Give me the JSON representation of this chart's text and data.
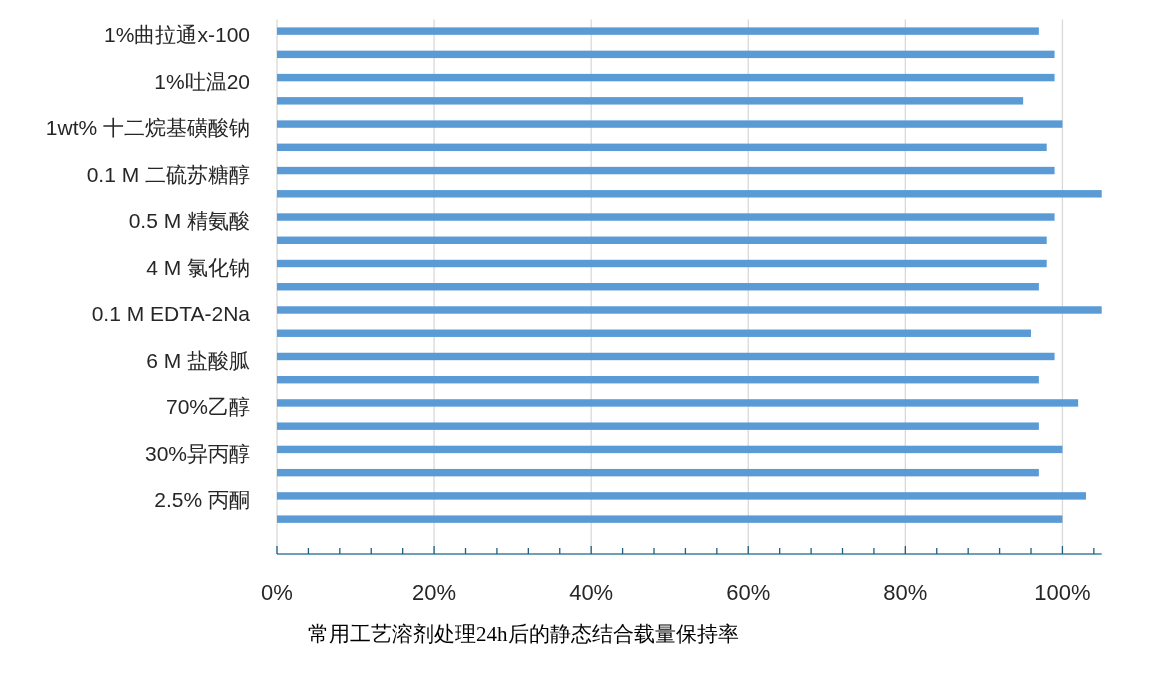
{
  "chart_data": {
    "type": "bar",
    "orientation": "horizontal",
    "title": "常用工艺溶剂处理24h后的静态结合载量保持率",
    "categories": [
      "1%曲拉通x-100",
      null,
      "1%吐温20",
      null,
      "1wt% 十二烷基磺酸钠",
      null,
      "0.1 M 二硫苏糖醇",
      null,
      "0.5 M 精氨酸",
      null,
      "4 M 氯化钠",
      null,
      "0.1 M EDTA-2Na",
      null,
      "6 M 盐酸胍",
      null,
      "70%乙醇",
      null,
      "30%异丙醇",
      null,
      "2.5% 丙酮",
      null,
      null
    ],
    "values": [
      97,
      99,
      99,
      95,
      100,
      98,
      99,
      105,
      99,
      98,
      98,
      97,
      105,
      96,
      99,
      97,
      102,
      97,
      100,
      97,
      103,
      100,
      null
    ],
    "color": "#5b9bd5",
    "xlim": [
      0,
      105
    ],
    "xticks": [
      {
        "value": 0,
        "label": "0%"
      },
      {
        "value": 4,
        "label": null
      },
      {
        "value": 8,
        "label": null
      },
      {
        "value": 12,
        "label": null
      },
      {
        "value": 16,
        "label": null
      },
      {
        "value": 20,
        "label": "20%"
      },
      {
        "value": 24,
        "label": null
      },
      {
        "value": 28,
        "label": null
      },
      {
        "value": 32,
        "label": null
      },
      {
        "value": 36,
        "label": null
      },
      {
        "value": 40,
        "label": "40%"
      },
      {
        "value": 44,
        "label": null
      },
      {
        "value": 48,
        "label": null
      },
      {
        "value": 52,
        "label": null
      },
      {
        "value": 56,
        "label": null
      },
      {
        "value": 60,
        "label": "60%"
      },
      {
        "value": 64,
        "label": null
      },
      {
        "value": 68,
        "label": null
      },
      {
        "value": 72,
        "label": null
      },
      {
        "value": 76,
        "label": null
      },
      {
        "value": 80,
        "label": "80%"
      },
      {
        "value": 84,
        "label": null
      },
      {
        "value": 88,
        "label": null
      },
      {
        "value": 92,
        "label": null
      },
      {
        "value": 96,
        "label": null
      },
      {
        "value": 100,
        "label": "100%"
      },
      {
        "value": 104,
        "label": null
      }
    ],
    "grid": "x"
  }
}
